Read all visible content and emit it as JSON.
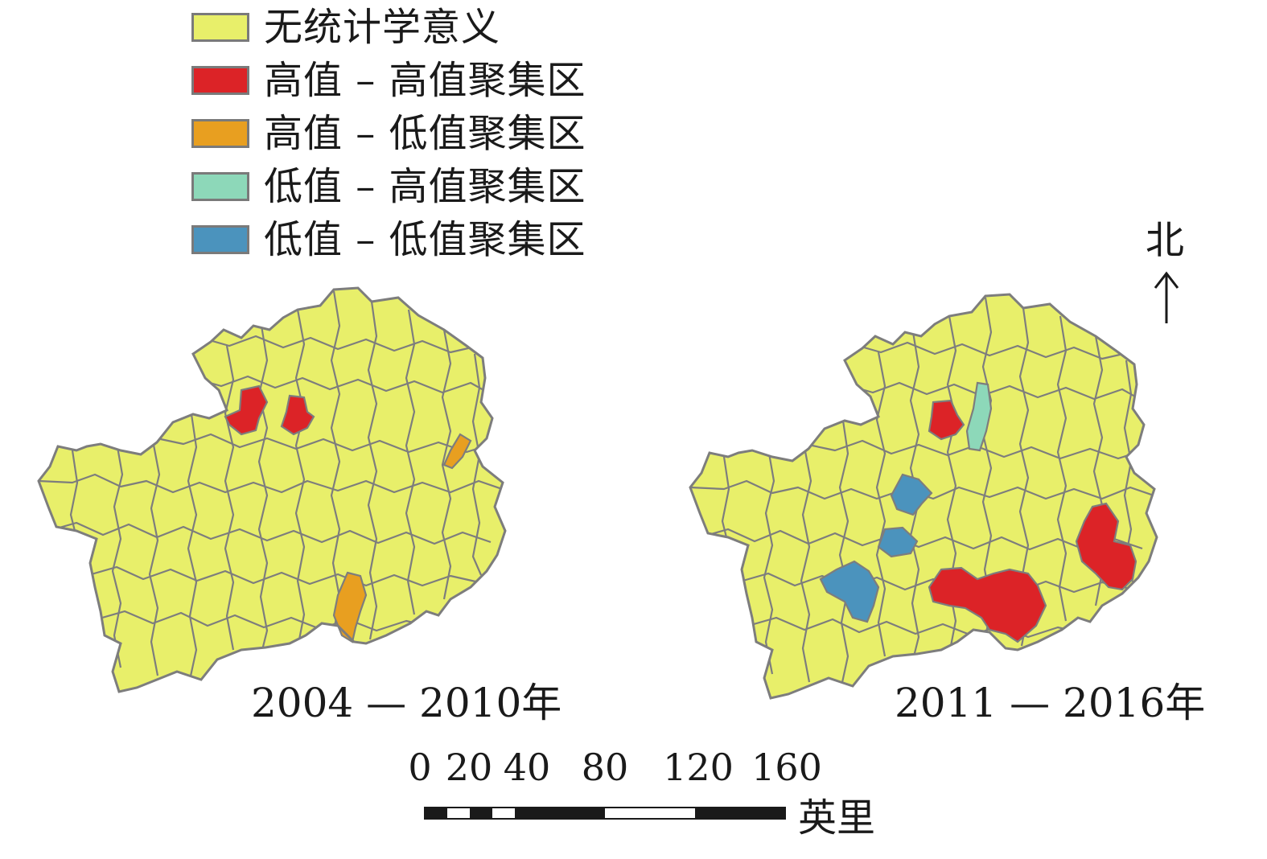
{
  "legend": {
    "items": [
      {
        "label": "无统计学意义",
        "color": "#e8ef6a"
      },
      {
        "label": "高值 – 高值聚集区",
        "color": "#dc2327"
      },
      {
        "label": "高值 – 低值聚集区",
        "color": "#e89f20"
      },
      {
        "label": "低值 – 高值聚集区",
        "color": "#8dd8b9"
      },
      {
        "label": "低值 – 低值聚集区",
        "color": "#4b93bd"
      }
    ]
  },
  "maps": [
    {
      "period": "2004 — 2010年"
    },
    {
      "period": "2011 — 2016年"
    }
  ],
  "north_label": "北",
  "scale": {
    "ticks": [
      "0",
      "20",
      "40",
      "80",
      "120",
      "160"
    ],
    "unit": "英里"
  },
  "colors": {
    "border": "#7d7d7d",
    "base": "#e8ef6a",
    "high_high": "#dc2327",
    "high_low": "#e89f20",
    "low_high": "#8dd8b9",
    "low_low": "#4b93bd"
  }
}
